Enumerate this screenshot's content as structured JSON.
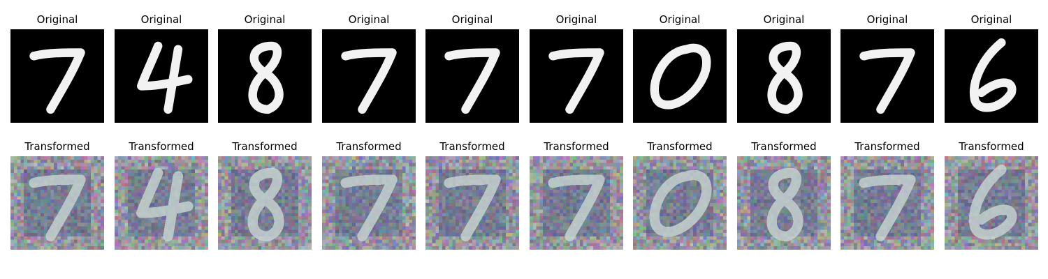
{
  "row_titles": {
    "original": "Original",
    "transformed": "Transformed"
  },
  "digits": [
    "7",
    "4",
    "8",
    "7",
    "7",
    "7",
    "0",
    "8",
    "7",
    "6"
  ],
  "colors": {
    "background": "#ffffff",
    "original_bg": "#000000",
    "original_stroke": "#f2f2f2",
    "transformed_base": "#8a8a9a",
    "transformed_stroke": "#c9d6d2"
  }
}
